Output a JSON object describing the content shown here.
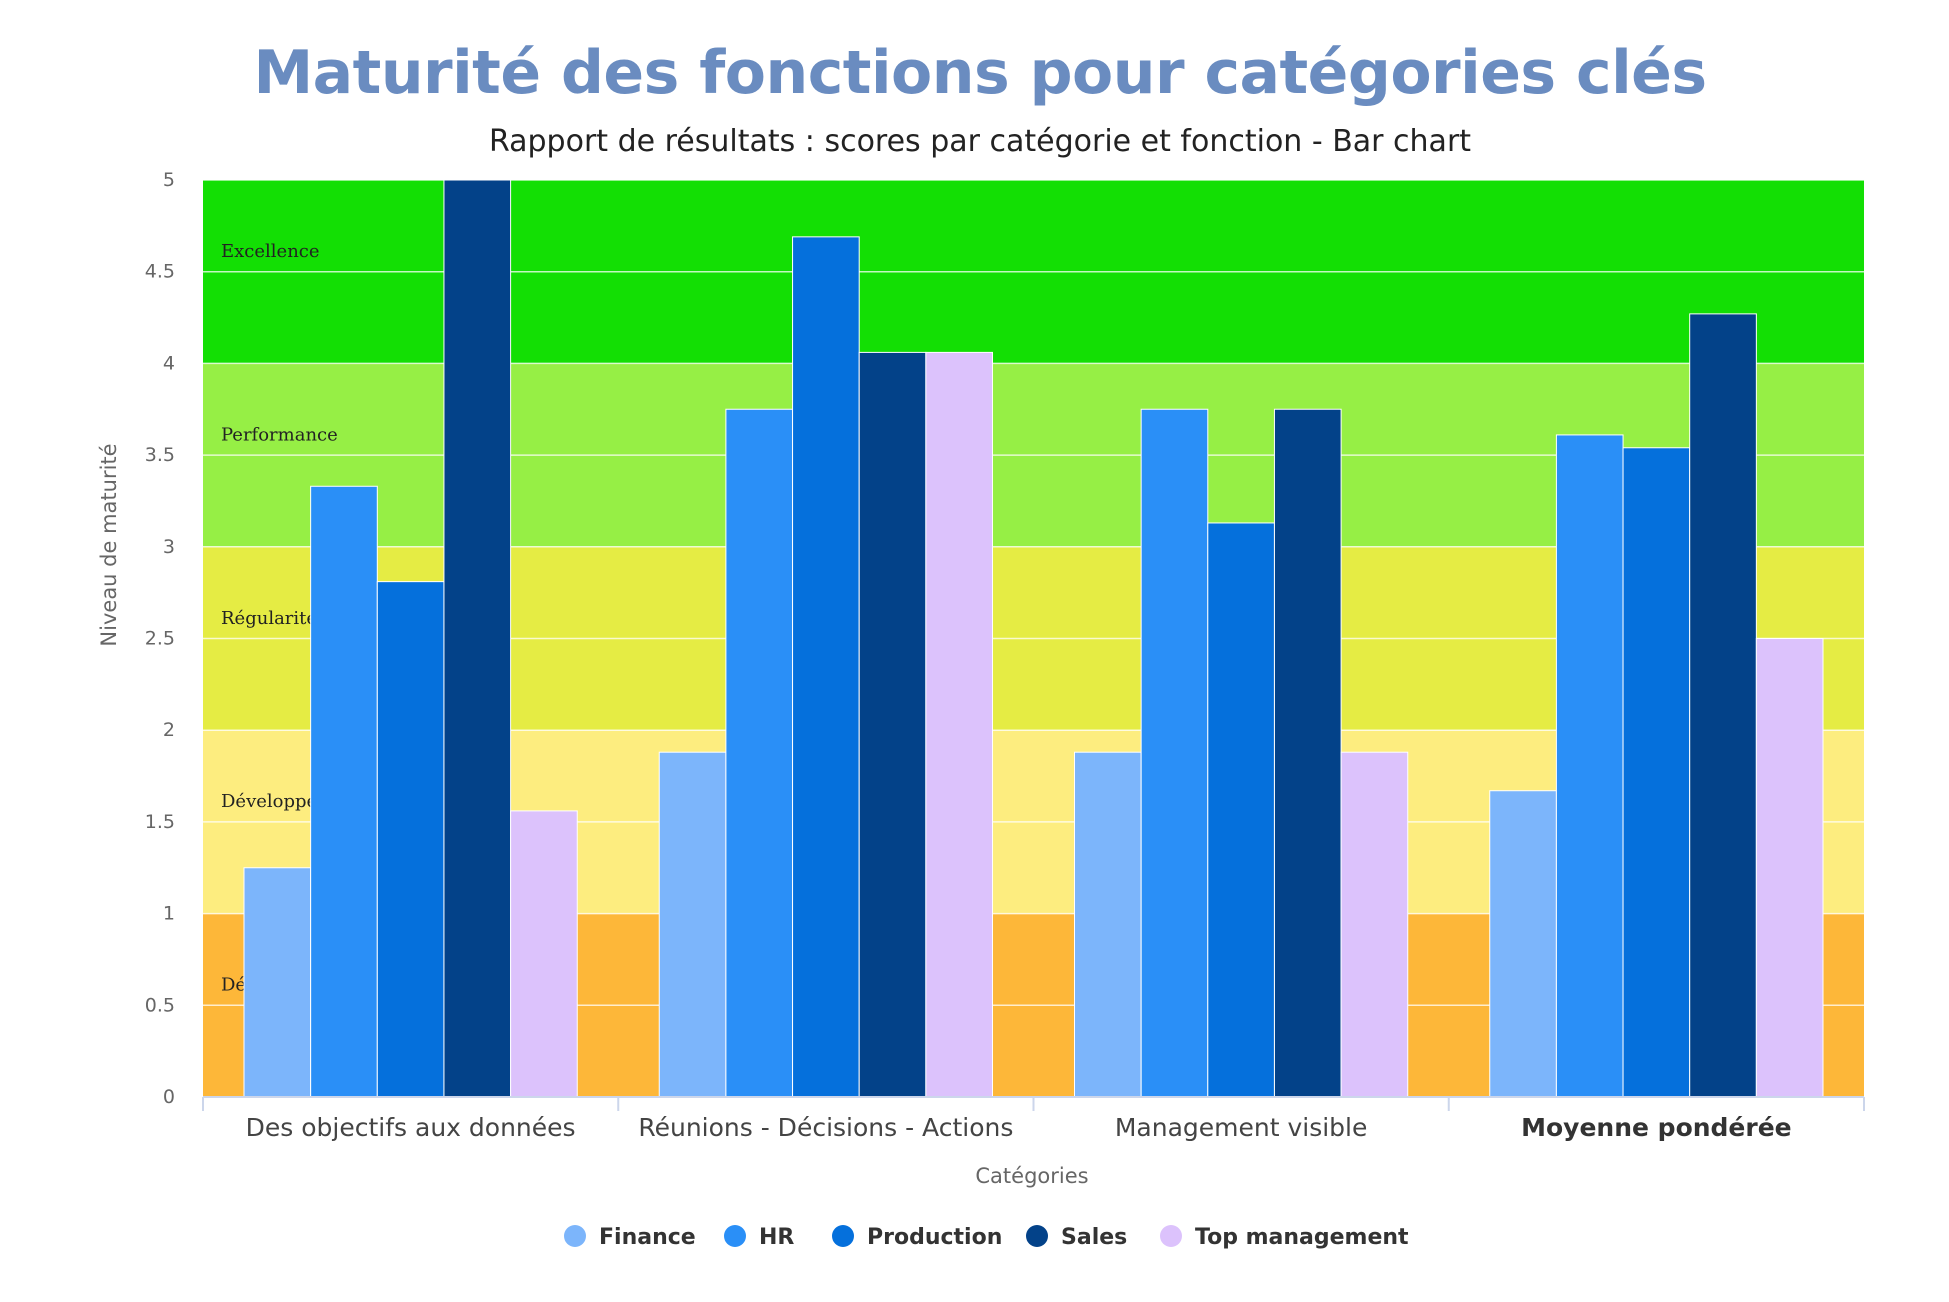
{
  "page": {
    "title": "Maturité des fonctions pour catégories clés",
    "subtitle": "Rapport de résultats : scores par catégorie et fonction - Bar chart"
  },
  "chart_data": {
    "type": "bar",
    "title": "Maturité des fonctions pour catégories clés",
    "subtitle": "Rapport de résultats : scores par catégorie et fonction - Bar chart",
    "xlabel": "Catégories",
    "ylabel": "Niveau de maturité",
    "ylim": [
      0,
      5
    ],
    "yticks": [
      "0",
      "0.5",
      "1",
      "1.5",
      "2",
      "2.5",
      "3",
      "3.5",
      "4",
      "4.5",
      "5"
    ],
    "categories": [
      "Des objectifs aux données",
      "Réunions - Décisions - Actions",
      "Management visible",
      "Moyenne pondérée"
    ],
    "bold_category": "Moyenne pondérée",
    "series": [
      {
        "name": "Finance",
        "color": "#7cb5fb",
        "values": [
          1.25,
          1.88,
          1.88,
          1.67
        ]
      },
      {
        "name": "HR",
        "color": "#2a8ff7",
        "values": [
          3.33,
          3.75,
          3.75,
          3.61
        ]
      },
      {
        "name": "Production",
        "color": "#0570dc",
        "values": [
          2.81,
          4.69,
          3.13,
          3.54
        ]
      },
      {
        "name": "Sales",
        "color": "#034289",
        "values": [
          5.0,
          4.06,
          3.75,
          4.27
        ]
      },
      {
        "name": "Top management",
        "color": "#dcc2fc",
        "values": [
          1.56,
          4.06,
          1.88,
          2.5
        ]
      }
    ],
    "bands": [
      {
        "from": 0,
        "to": 1,
        "color": "#fdb739",
        "label": "Dé"
      },
      {
        "from": 1,
        "to": 2,
        "color": "#fded7f",
        "label": "Développe"
      },
      {
        "from": 2,
        "to": 3,
        "color": "#e5ec44",
        "label": "Régularité"
      },
      {
        "from": 3,
        "to": 4,
        "color": "#96ef45",
        "label": "Performance"
      },
      {
        "from": 4,
        "to": 5,
        "color": "#13df04",
        "label": "Excellence"
      }
    ],
    "grid": true,
    "legend_position": "bottom-center"
  }
}
